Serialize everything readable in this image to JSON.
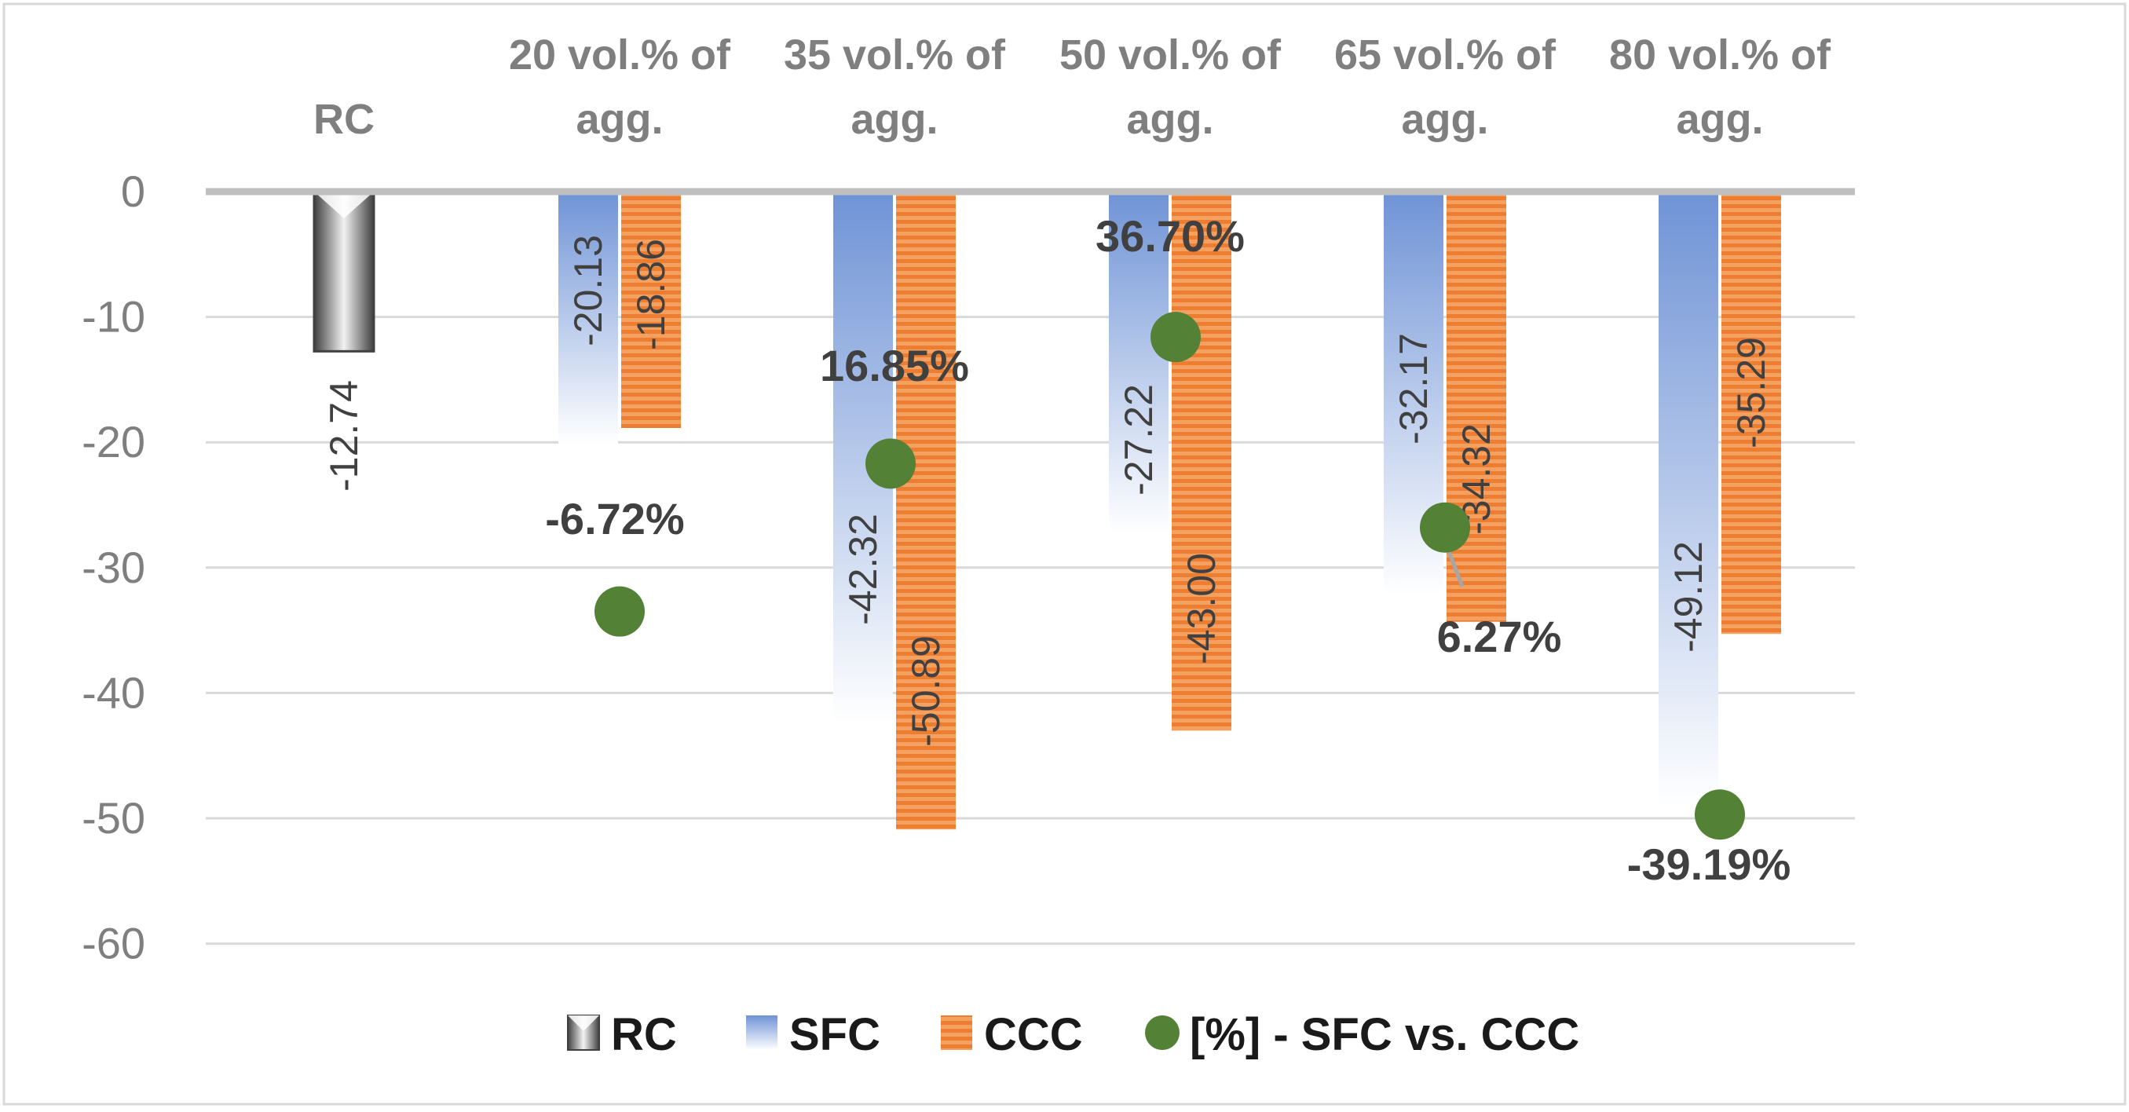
{
  "chart_data": {
    "type": "bar",
    "categories": [
      "RC",
      "20 vol.% of agg.",
      "35 vol.% of agg.",
      "50 vol.% of agg.",
      "65 vol.% of agg.",
      "80 vol.% of agg."
    ],
    "category_lines": [
      [
        "RC"
      ],
      [
        "20 vol.% of",
        "agg."
      ],
      [
        "35 vol.% of",
        "agg."
      ],
      [
        "50 vol.% of",
        "agg."
      ],
      [
        "65 vol.% of",
        "agg."
      ],
      [
        "80 vol.% of",
        "agg."
      ]
    ],
    "series": [
      {
        "name": "RC",
        "values": [
          -12.74,
          null,
          null,
          null,
          null,
          null
        ],
        "labels": [
          "-12.74",
          "",
          "",
          "",
          "",
          ""
        ],
        "color": "#808080"
      },
      {
        "name": "SFC",
        "values": [
          null,
          -20.13,
          -42.32,
          -27.22,
          -32.17,
          -49.12
        ],
        "labels": [
          "",
          "-20.13",
          "-42.32",
          "-27.22",
          "-32.17",
          "-49.12"
        ],
        "color": "#4472c4"
      },
      {
        "name": "CCC",
        "values": [
          null,
          -18.86,
          -50.89,
          -43.0,
          -34.32,
          -35.29
        ],
        "labels": [
          "",
          "-18.86",
          "-50.89",
          "-43.00",
          "-34.32",
          "-35.29"
        ],
        "color": "#ed7d31"
      }
    ],
    "markers": {
      "name": "[%] - SFC vs. CCC",
      "color": "#538135",
      "values": [
        null,
        -6.72,
        16.85,
        36.7,
        6.27,
        -39.19
      ],
      "labels": [
        "",
        "-6.72%",
        "16.85%",
        "36.70%",
        "6.27%",
        "-39.19%"
      ],
      "plot_y": [
        null,
        -33.5,
        -21.7,
        -11.6,
        -26.8,
        -49.7
      ]
    },
    "ylim": [
      -60,
      0
    ],
    "yticks": [
      0,
      -10,
      -20,
      -30,
      -40,
      -50,
      -60
    ],
    "ytick_labels": [
      "0",
      "-10",
      "-20",
      "-30",
      "-40",
      "-50",
      "-60"
    ],
    "grid": true,
    "legend_position": "bottom",
    "title": "",
    "xlabel": "",
    "ylabel": ""
  }
}
